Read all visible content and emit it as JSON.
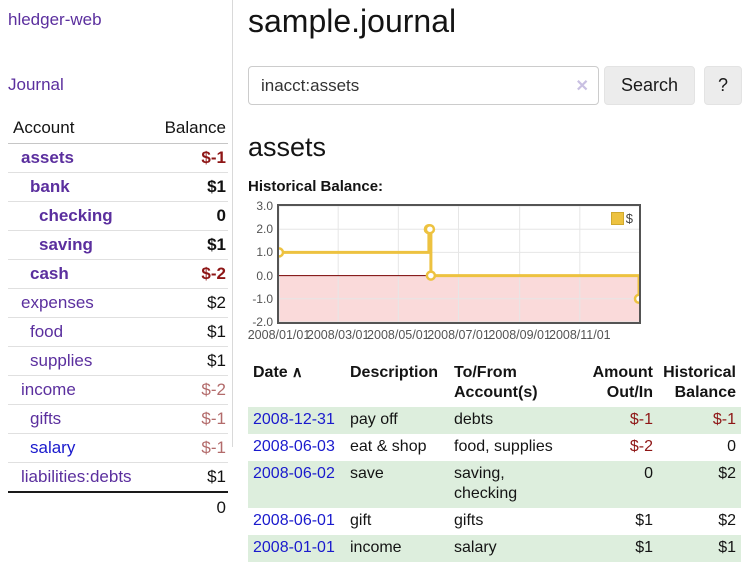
{
  "sidebar": {
    "brand": "hledger-web",
    "journal_link": "Journal",
    "accounts_table": {
      "col_account": "Account",
      "col_balance": "Balance",
      "rows": [
        {
          "name": "assets",
          "balance": "$-1"
        },
        {
          "name": "bank",
          "balance": "$1"
        },
        {
          "name": "checking",
          "balance": "0"
        },
        {
          "name": "saving",
          "balance": "$1"
        },
        {
          "name": "cash",
          "balance": "$-2"
        },
        {
          "name": "expenses",
          "balance": "$2"
        },
        {
          "name": "food",
          "balance": "$1"
        },
        {
          "name": "supplies",
          "balance": "$1"
        },
        {
          "name": "income",
          "balance": "$-2"
        },
        {
          "name": "gifts",
          "balance": "$-1"
        },
        {
          "name": "salary",
          "balance": "$-1"
        },
        {
          "name": "liabilities:debts",
          "balance": "$1"
        }
      ],
      "total": "0"
    }
  },
  "main": {
    "title": "sample.journal",
    "search": {
      "value": "inacct:assets",
      "clear": "✕",
      "button": "Search",
      "help": "?"
    },
    "heading": "assets",
    "chart_title": "Historical Balance:",
    "register": {
      "col_date": "Date",
      "sort_icon": "∧",
      "col_description": "Description",
      "col_accounts": "To/From\nAccount(s)",
      "col_amount": "Amount\nOut/In",
      "col_balance": "Historical\nBalance",
      "rows": [
        {
          "date": "2008-12-31",
          "description": "pay off",
          "accounts": "debts",
          "amount": "$-1",
          "balance": "$-1"
        },
        {
          "date": "2008-06-03",
          "description": "eat & shop",
          "accounts": "food, supplies",
          "amount": "$-2",
          "balance": "0"
        },
        {
          "date": "2008-06-02",
          "description": "save",
          "accounts": "saving,\nchecking",
          "amount": "0",
          "balance": "$2"
        },
        {
          "date": "2008-06-01",
          "description": "gift",
          "accounts": "gifts",
          "amount": "$1",
          "balance": "$2"
        },
        {
          "date": "2008-01-01",
          "description": "income",
          "accounts": "salary",
          "amount": "$1",
          "balance": "$1"
        }
      ]
    }
  },
  "chart_data": {
    "type": "line",
    "step": true,
    "title": "Historical Balance",
    "series": [
      {
        "name": "$",
        "points": [
          [
            "2008-01-01",
            1
          ],
          [
            "2008-06-01",
            2
          ],
          [
            "2008-06-02",
            2
          ],
          [
            "2008-06-03",
            0
          ],
          [
            "2008-12-31",
            -1
          ]
        ]
      }
    ],
    "x_range": [
      "2008-01-01",
      "2008-12-31"
    ],
    "ylim": [
      -2,
      3
    ],
    "y_ticks": [
      "3.0",
      "2.0",
      "1.0",
      "0.0",
      "-1.0",
      "-2.0"
    ],
    "x_ticks": [
      {
        "label": "2008/01/01",
        "date": "2008-01-01"
      },
      {
        "label": "2008/03/01",
        "date": "2008-03-01"
      },
      {
        "label": "2008/05/01",
        "date": "2008-05-01"
      },
      {
        "label": "2008/07/01",
        "date": "2008-07-01"
      },
      {
        "label": "2008/09/01",
        "date": "2008-09-01"
      },
      {
        "label": "2008/11/01",
        "date": "2008-11-01"
      }
    ],
    "legend": {
      "label": "$",
      "position": "top-right"
    },
    "colors": {
      "line": "#edc240",
      "marker_fill": "#ffffff",
      "negative_region": "#fadada",
      "zero_line": "#7a0000",
      "grid": "#e6e6e6",
      "border": "#545454",
      "tick_text": "#545454"
    }
  }
}
